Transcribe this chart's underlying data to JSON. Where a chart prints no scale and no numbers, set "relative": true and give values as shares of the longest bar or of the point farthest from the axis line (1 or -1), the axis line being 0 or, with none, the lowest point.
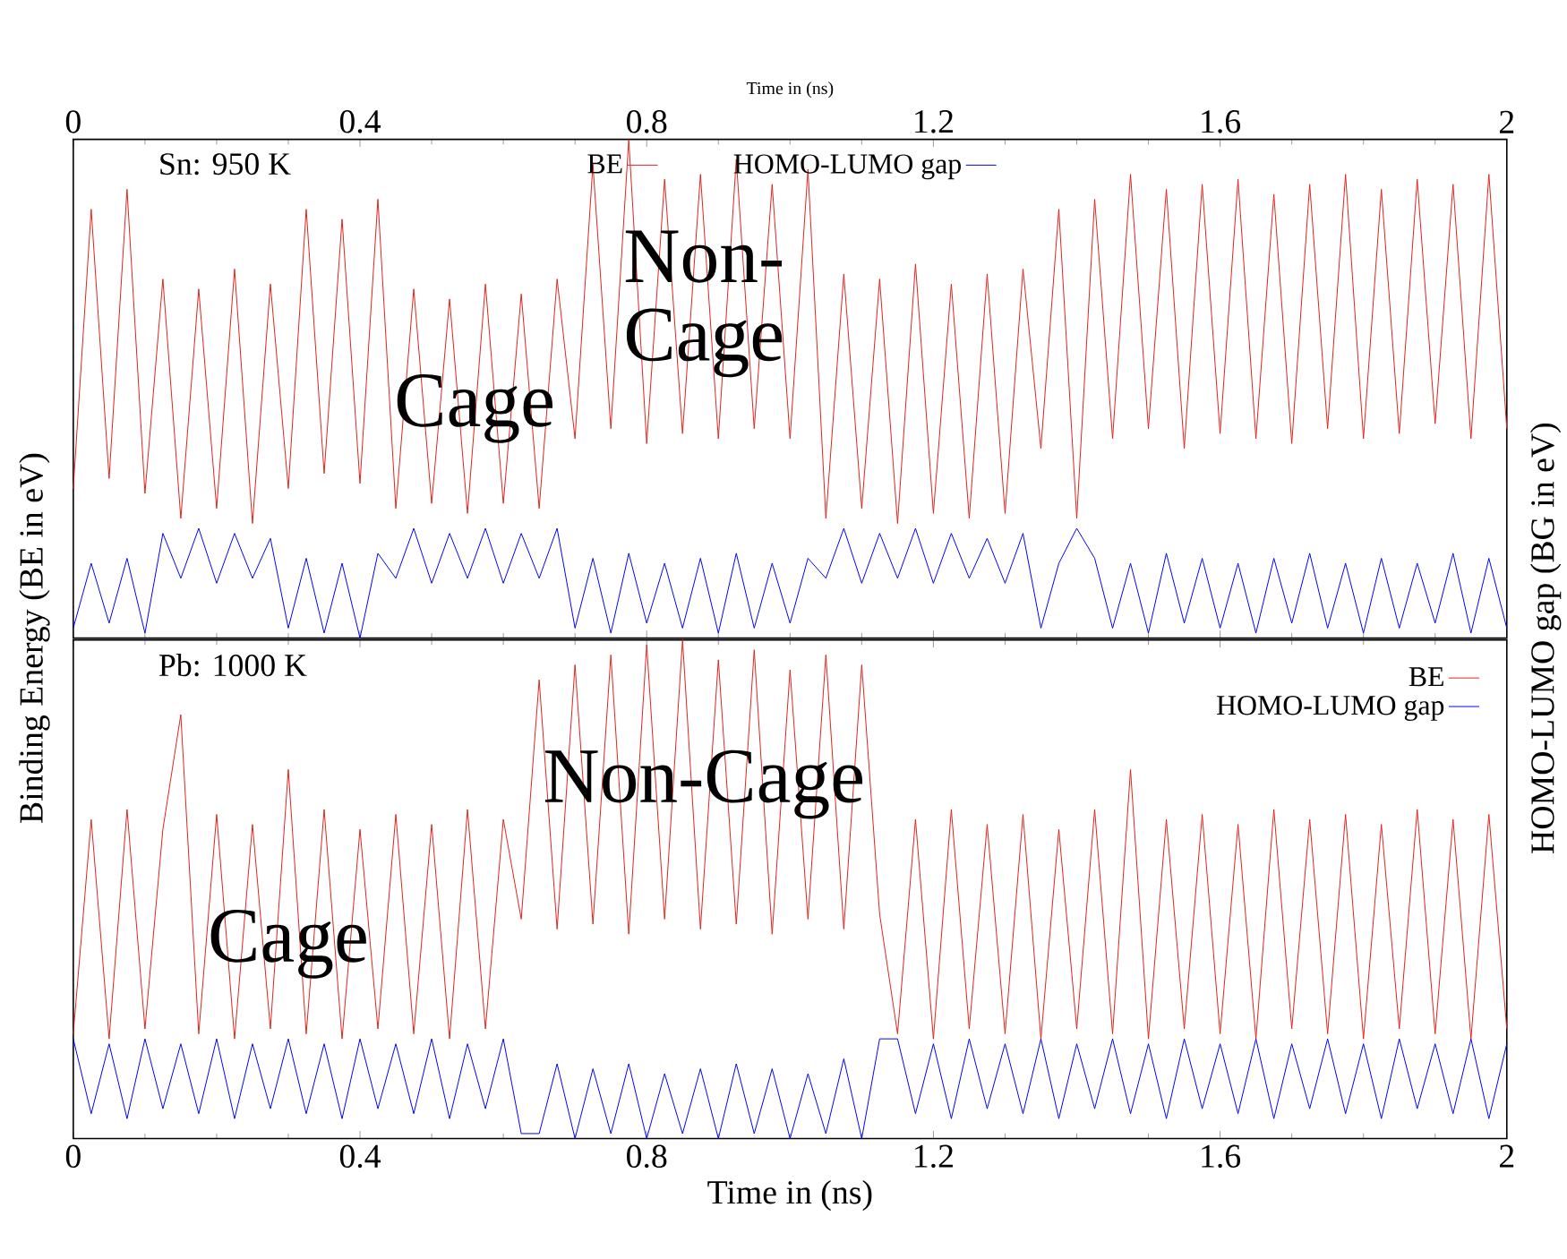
{
  "chart_data": [
    {
      "type": "line",
      "relative": true,
      "xlabel": "Time in (ns)",
      "xlim": [
        0,
        2
      ],
      "xticks": [
        0,
        0.4,
        0.8,
        1.2,
        1.6,
        2
      ],
      "ylabel": "Binding Energy (BE in eV)",
      "y2label": "HOMO-LUMO gap (BG in eV)",
      "legend": "top center",
      "annotations": [
        "Sn: 950 K",
        "Cage",
        "Non-Cage"
      ],
      "x": [
        0,
        0.025,
        0.05,
        0.075,
        0.1,
        0.125,
        0.15,
        0.175,
        0.2,
        0.225,
        0.25,
        0.275,
        0.3,
        0.325,
        0.35,
        0.375,
        0.4,
        0.425,
        0.45,
        0.475,
        0.5,
        0.525,
        0.55,
        0.575,
        0.6,
        0.625,
        0.65,
        0.675,
        0.7,
        0.725,
        0.75,
        0.775,
        0.8,
        0.825,
        0.85,
        0.875,
        0.9,
        0.925,
        0.95,
        0.975,
        1,
        1.025,
        1.05,
        1.075,
        1.1,
        1.125,
        1.15,
        1.175,
        1.2,
        1.225,
        1.25,
        1.275,
        1.3,
        1.325,
        1.35,
        1.375,
        1.4,
        1.425,
        1.45,
        1.475,
        1.5,
        1.525,
        1.55,
        1.575,
        1.6,
        1.625,
        1.65,
        1.675,
        1.7,
        1.725,
        1.75,
        1.775,
        1.8,
        1.825,
        1.85,
        1.875,
        1.9,
        1.925,
        1.95,
        1.975,
        2
      ],
      "series": [
        {
          "name": "BE",
          "color": "#e3211b",
          "values": [
            0.3,
            0.86,
            0.32,
            0.9,
            0.29,
            0.72,
            0.24,
            0.7,
            0.26,
            0.74,
            0.23,
            0.71,
            0.3,
            0.86,
            0.33,
            0.84,
            0.31,
            0.88,
            0.26,
            0.7,
            0.27,
            0.68,
            0.25,
            0.71,
            0.27,
            0.69,
            0.26,
            0.72,
            0.4,
            0.95,
            0.42,
            1.0,
            0.39,
            0.92,
            0.41,
            0.93,
            0.4,
            0.96,
            0.42,
            0.91,
            0.4,
            0.94,
            0.24,
            0.73,
            0.26,
            0.72,
            0.23,
            0.75,
            0.25,
            0.71,
            0.24,
            0.73,
            0.25,
            0.74,
            0.38,
            0.86,
            0.24,
            0.88,
            0.4,
            0.93,
            0.42,
            0.9,
            0.38,
            0.91,
            0.41,
            0.92,
            0.4,
            0.89,
            0.39,
            0.91,
            0.42,
            0.93,
            0.4,
            0.9,
            0.41,
            0.92,
            0.43,
            0.91,
            0.4,
            0.93,
            0.42
          ]
        },
        {
          "name": "HOMO-LUMO gap",
          "color": "#0000ff",
          "values": [
            0.02,
            0.15,
            0.03,
            0.16,
            0.01,
            0.21,
            0.12,
            0.22,
            0.11,
            0.21,
            0.12,
            0.2,
            0.02,
            0.16,
            0.01,
            0.15,
            0.0,
            0.17,
            0.12,
            0.22,
            0.11,
            0.21,
            0.12,
            0.22,
            0.11,
            0.21,
            0.12,
            0.22,
            0.02,
            0.16,
            0.01,
            0.17,
            0.03,
            0.15,
            0.02,
            0.16,
            0.01,
            0.17,
            0.02,
            0.15,
            0.03,
            0.16,
            0.12,
            0.22,
            0.11,
            0.21,
            0.12,
            0.22,
            0.11,
            0.21,
            0.12,
            0.2,
            0.11,
            0.21,
            0.02,
            0.15,
            0.22,
            0.16,
            0.02,
            0.15,
            0.01,
            0.17,
            0.03,
            0.16,
            0.02,
            0.15,
            0.01,
            0.16,
            0.03,
            0.17,
            0.02,
            0.15,
            0.01,
            0.16,
            0.02,
            0.15,
            0.03,
            0.17,
            0.01,
            0.16,
            0.02
          ]
        }
      ]
    },
    {
      "type": "line",
      "relative": true,
      "xlabel": "Time in (ns)",
      "xlim": [
        0,
        2
      ],
      "xticks": [
        0,
        0.4,
        0.8,
        1.2,
        1.6,
        2
      ],
      "legend": "top right",
      "annotations": [
        "Pb: 1000 K",
        "Cage",
        "Non-Cage"
      ],
      "x": [
        0,
        0.025,
        0.05,
        0.075,
        0.1,
        0.125,
        0.15,
        0.175,
        0.2,
        0.225,
        0.25,
        0.275,
        0.3,
        0.325,
        0.35,
        0.375,
        0.4,
        0.425,
        0.45,
        0.475,
        0.5,
        0.525,
        0.55,
        0.575,
        0.6,
        0.625,
        0.65,
        0.675,
        0.7,
        0.725,
        0.75,
        0.775,
        0.8,
        0.825,
        0.85,
        0.875,
        0.9,
        0.925,
        0.95,
        0.975,
        1,
        1.025,
        1.05,
        1.075,
        1.1,
        1.125,
        1.15,
        1.175,
        1.2,
        1.225,
        1.25,
        1.275,
        1.3,
        1.325,
        1.35,
        1.375,
        1.4,
        1.425,
        1.45,
        1.475,
        1.5,
        1.525,
        1.55,
        1.575,
        1.6,
        1.625,
        1.65,
        1.675,
        1.7,
        1.725,
        1.75,
        1.775,
        1.8,
        1.825,
        1.85,
        1.875,
        1.9,
        1.925,
        1.95,
        1.975,
        2
      ],
      "series": [
        {
          "name": "BE",
          "color": "#e3211b",
          "values": [
            0.21,
            0.64,
            0.2,
            0.66,
            0.22,
            0.62,
            0.85,
            0.21,
            0.65,
            0.2,
            0.63,
            0.22,
            0.74,
            0.21,
            0.66,
            0.2,
            0.62,
            0.22,
            0.65,
            0.21,
            0.63,
            0.2,
            0.66,
            0.22,
            0.64,
            0.44,
            0.92,
            0.42,
            0.95,
            0.43,
            0.97,
            0.41,
            0.99,
            0.44,
            1.0,
            0.42,
            0.96,
            0.43,
            0.98,
            0.41,
            0.94,
            0.44,
            0.97,
            0.42,
            0.95,
            0.45,
            0.21,
            0.64,
            0.2,
            0.66,
            0.22,
            0.63,
            0.21,
            0.65,
            0.2,
            0.62,
            0.22,
            0.66,
            0.21,
            0.74,
            0.2,
            0.64,
            0.22,
            0.65,
            0.21,
            0.63,
            0.2,
            0.66,
            0.22,
            0.64,
            0.21,
            0.65,
            0.2,
            0.63,
            0.22,
            0.66,
            0.21,
            0.64,
            0.2,
            0.65,
            0.22
          ]
        },
        {
          "name": "HOMO-LUMO gap",
          "color": "#0000ff",
          "values": [
            0.2,
            0.05,
            0.19,
            0.04,
            0.2,
            0.06,
            0.19,
            0.05,
            0.2,
            0.04,
            0.19,
            0.06,
            0.2,
            0.05,
            0.19,
            0.04,
            0.2,
            0.06,
            0.19,
            0.05,
            0.2,
            0.04,
            0.19,
            0.06,
            0.2,
            0.01,
            0.01,
            0.15,
            0.0,
            0.14,
            0.01,
            0.15,
            0.0,
            0.13,
            0.01,
            0.14,
            0.0,
            0.15,
            0.01,
            0.14,
            0.0,
            0.13,
            0.01,
            0.16,
            0.0,
            0.2,
            0.2,
            0.05,
            0.19,
            0.04,
            0.2,
            0.06,
            0.19,
            0.05,
            0.2,
            0.04,
            0.19,
            0.06,
            0.2,
            0.05,
            0.19,
            0.04,
            0.2,
            0.06,
            0.19,
            0.05,
            0.2,
            0.04,
            0.19,
            0.06,
            0.2,
            0.05,
            0.19,
            0.04,
            0.2,
            0.06,
            0.19,
            0.05,
            0.2,
            0.04,
            0.19
          ]
        }
      ]
    }
  ]
}
